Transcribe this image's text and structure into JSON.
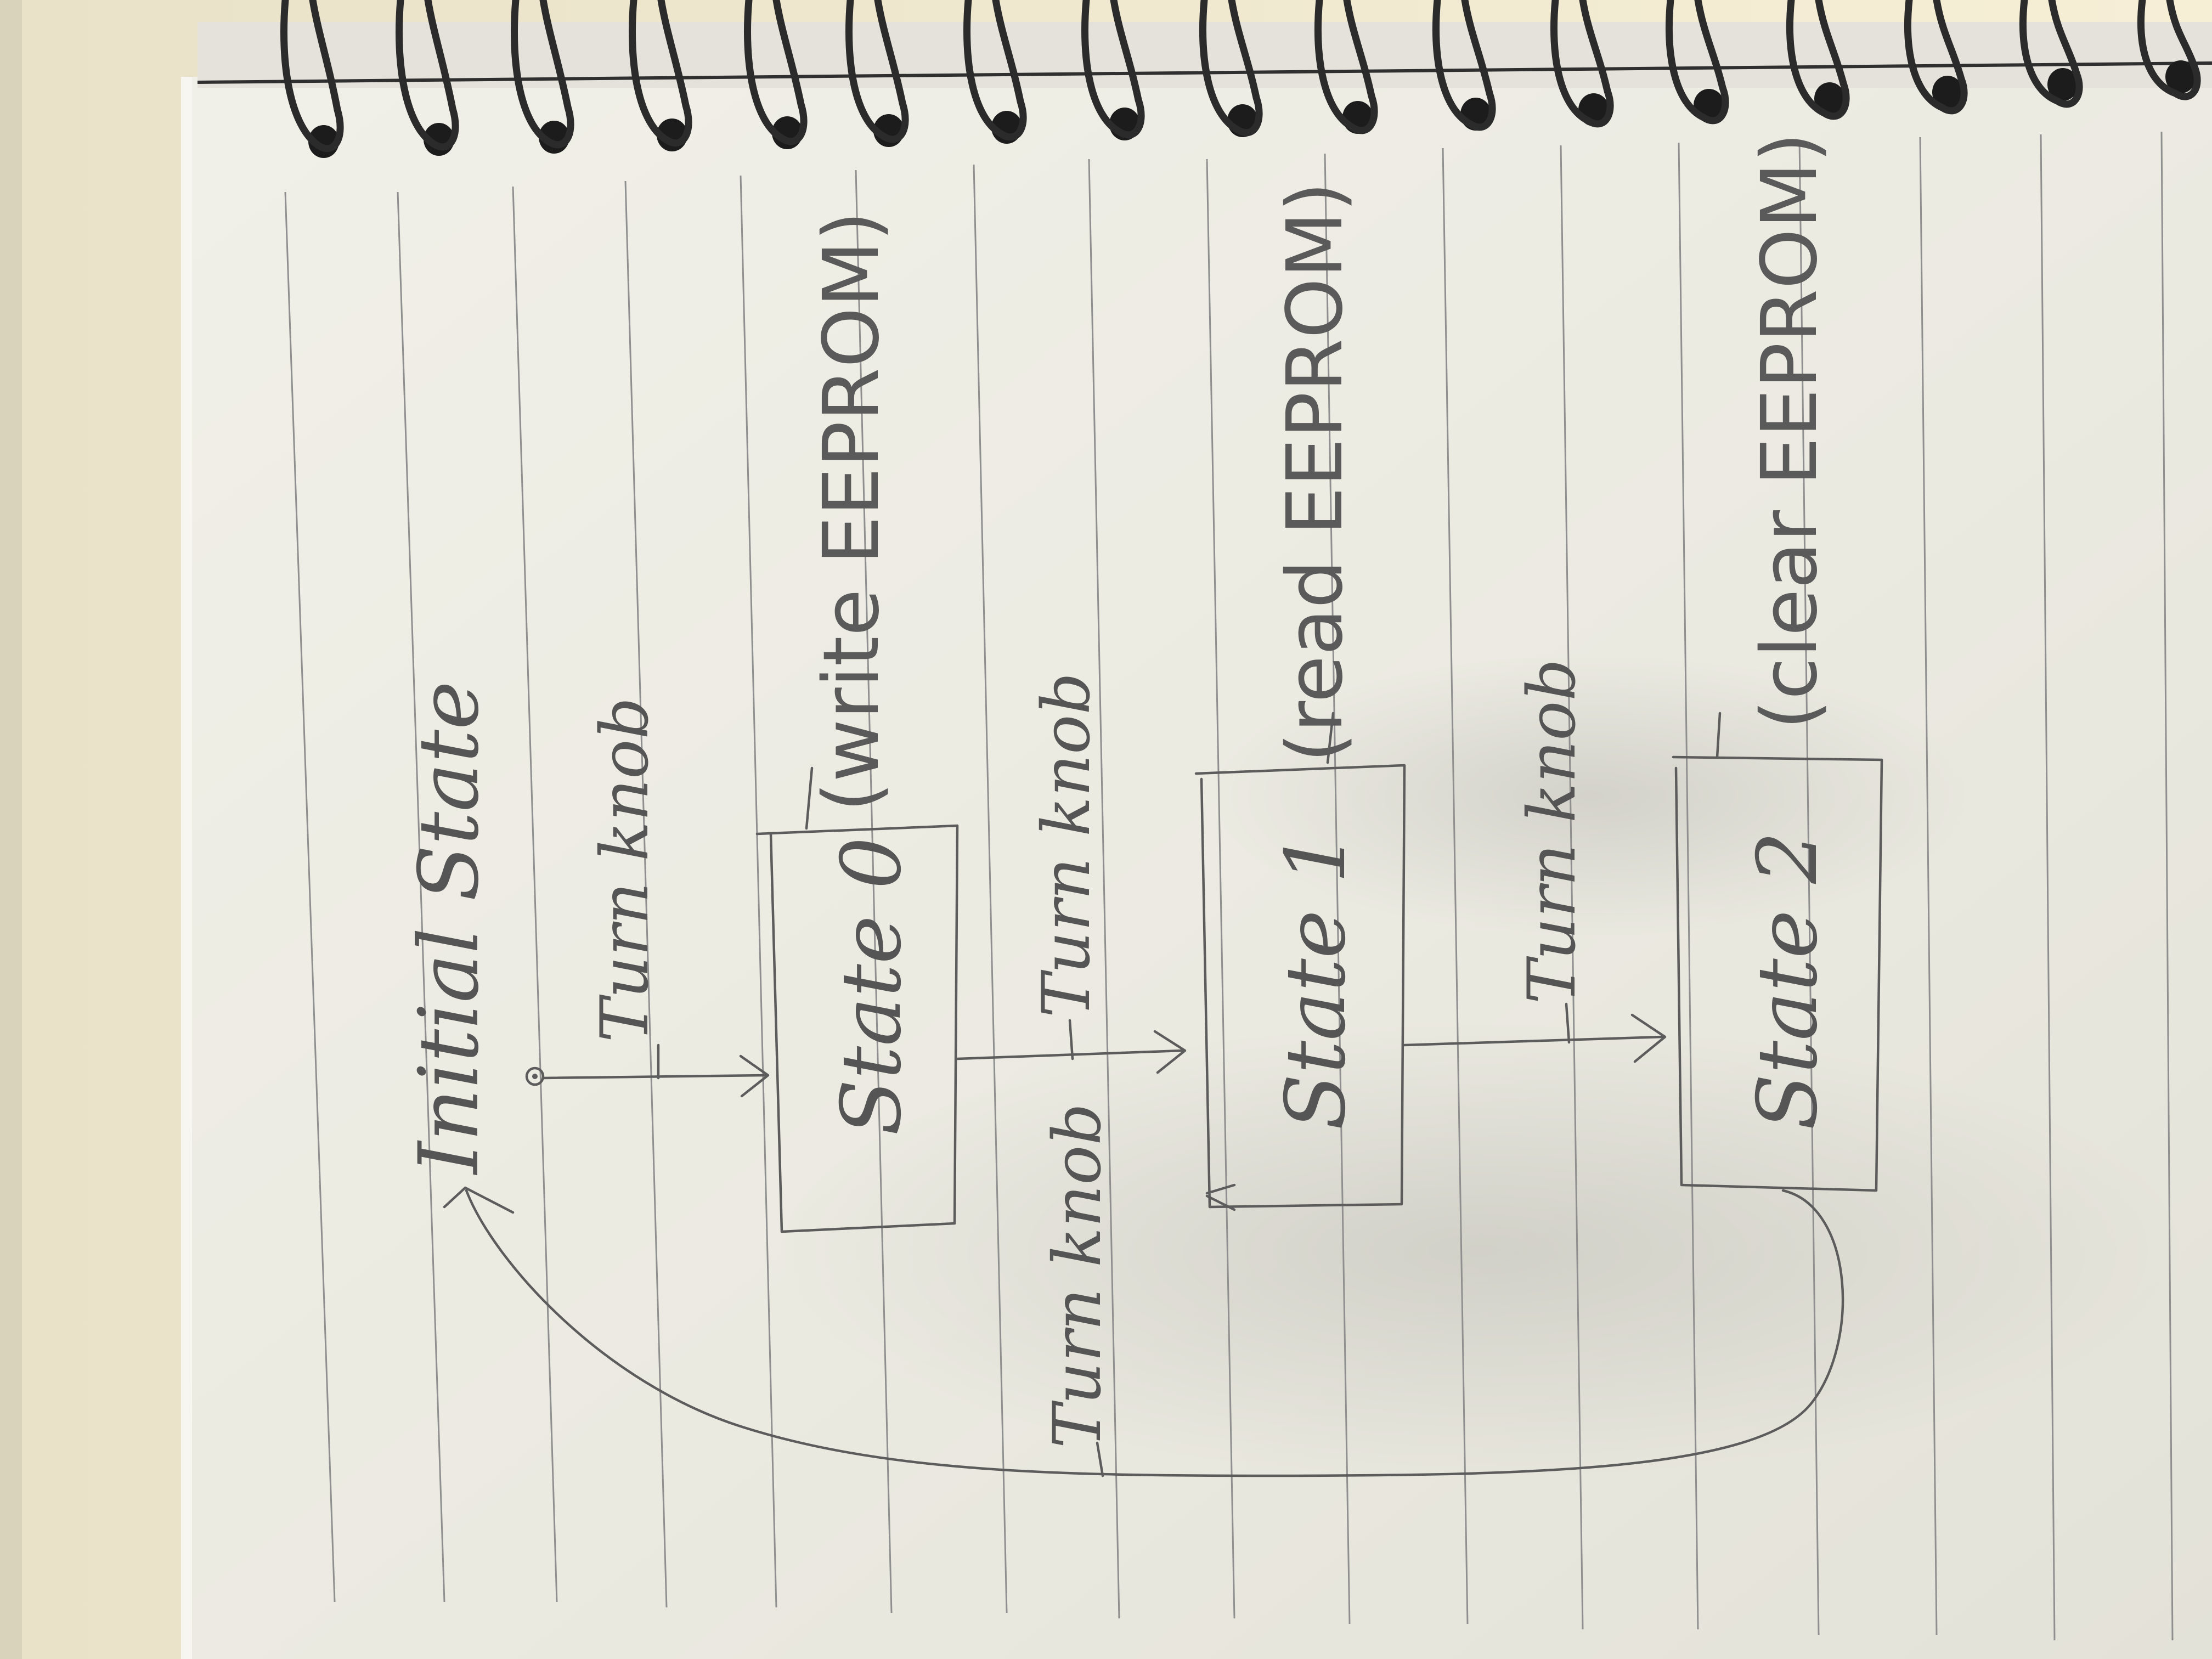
{
  "diagram": {
    "initial_state_label": "Initial State",
    "transitions": {
      "initial_to_state0": "Turn knob",
      "state0_to_state1": "Turn knob",
      "state1_to_state2": "Turn knob",
      "state2_to_state0": "Turn knob"
    },
    "states": [
      {
        "name": "State 0",
        "action": "(write EEPROM)"
      },
      {
        "name": "State 1",
        "action": "(read EEPROM)"
      },
      {
        "name": "State 2",
        "action": "(clear EEPROM)"
      }
    ]
  },
  "colors": {
    "paper": "#eeede4",
    "pencil": "#5c5c5c",
    "ruled_lines": "#8f8f8f",
    "spiral_binding": "#2b2b2b",
    "desk": "#f3ecd2"
  }
}
